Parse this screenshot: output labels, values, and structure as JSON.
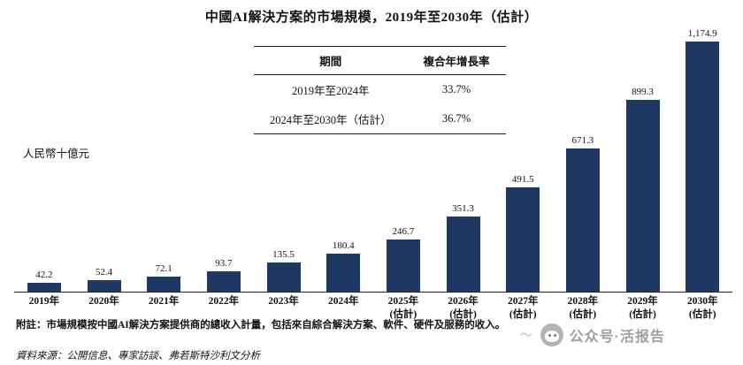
{
  "title": "中國AI解決方案的市場規模，2019年至2030年（估計）",
  "table": {
    "headers": [
      "期間",
      "複合年增長率"
    ],
    "rows": [
      [
        "2019年至2024年",
        "33.7%"
      ],
      [
        "2024年至2030年（估計）",
        "36.7%"
      ]
    ]
  },
  "ylabel": "人民幣十億元",
  "chart_data": {
    "type": "bar",
    "categories": [
      {
        "label": "2019年",
        "sublabel": ""
      },
      {
        "label": "2020年",
        "sublabel": ""
      },
      {
        "label": "2021年",
        "sublabel": ""
      },
      {
        "label": "2022年",
        "sublabel": ""
      },
      {
        "label": "2023年",
        "sublabel": ""
      },
      {
        "label": "2024年",
        "sublabel": ""
      },
      {
        "label": "2025年",
        "sublabel": "(估計)"
      },
      {
        "label": "2026年",
        "sublabel": "(估計)"
      },
      {
        "label": "2027年",
        "sublabel": "(估計)"
      },
      {
        "label": "2028年",
        "sublabel": "(估計)"
      },
      {
        "label": "2029年",
        "sublabel": "(估計)"
      },
      {
        "label": "2030年",
        "sublabel": "(估計)"
      }
    ],
    "values": [
      42.2,
      52.4,
      72.1,
      93.7,
      135.5,
      180.4,
      246.7,
      351.3,
      491.5,
      671.3,
      899.3,
      1174.9
    ],
    "value_labels": [
      "42.2",
      "52.4",
      "72.1",
      "93.7",
      "135.5",
      "180.4",
      "246.7",
      "351.3",
      "491.5",
      "671.3",
      "899.3",
      "1,174.9"
    ],
    "title": "中國AI解決方案的市場規模，2019年至2030年（估計）",
    "xlabel": "",
    "ylabel": "人民幣十億元",
    "ylim": [
      0,
      1174.9
    ],
    "bar_color": "#1F3864",
    "grid": false,
    "legend": "none"
  },
  "notes": {
    "note1": "附註：市場規模按中國AI解決方案提供商的總收入計量，包括來自綜合解決方案、軟件、硬件及服務的收入。",
    "source": "資料來源：公開信息、專家訪談、弗若斯特沙利文分析"
  },
  "watermark": {
    "squiggle": "〜",
    "text": "公众号·活报告"
  }
}
